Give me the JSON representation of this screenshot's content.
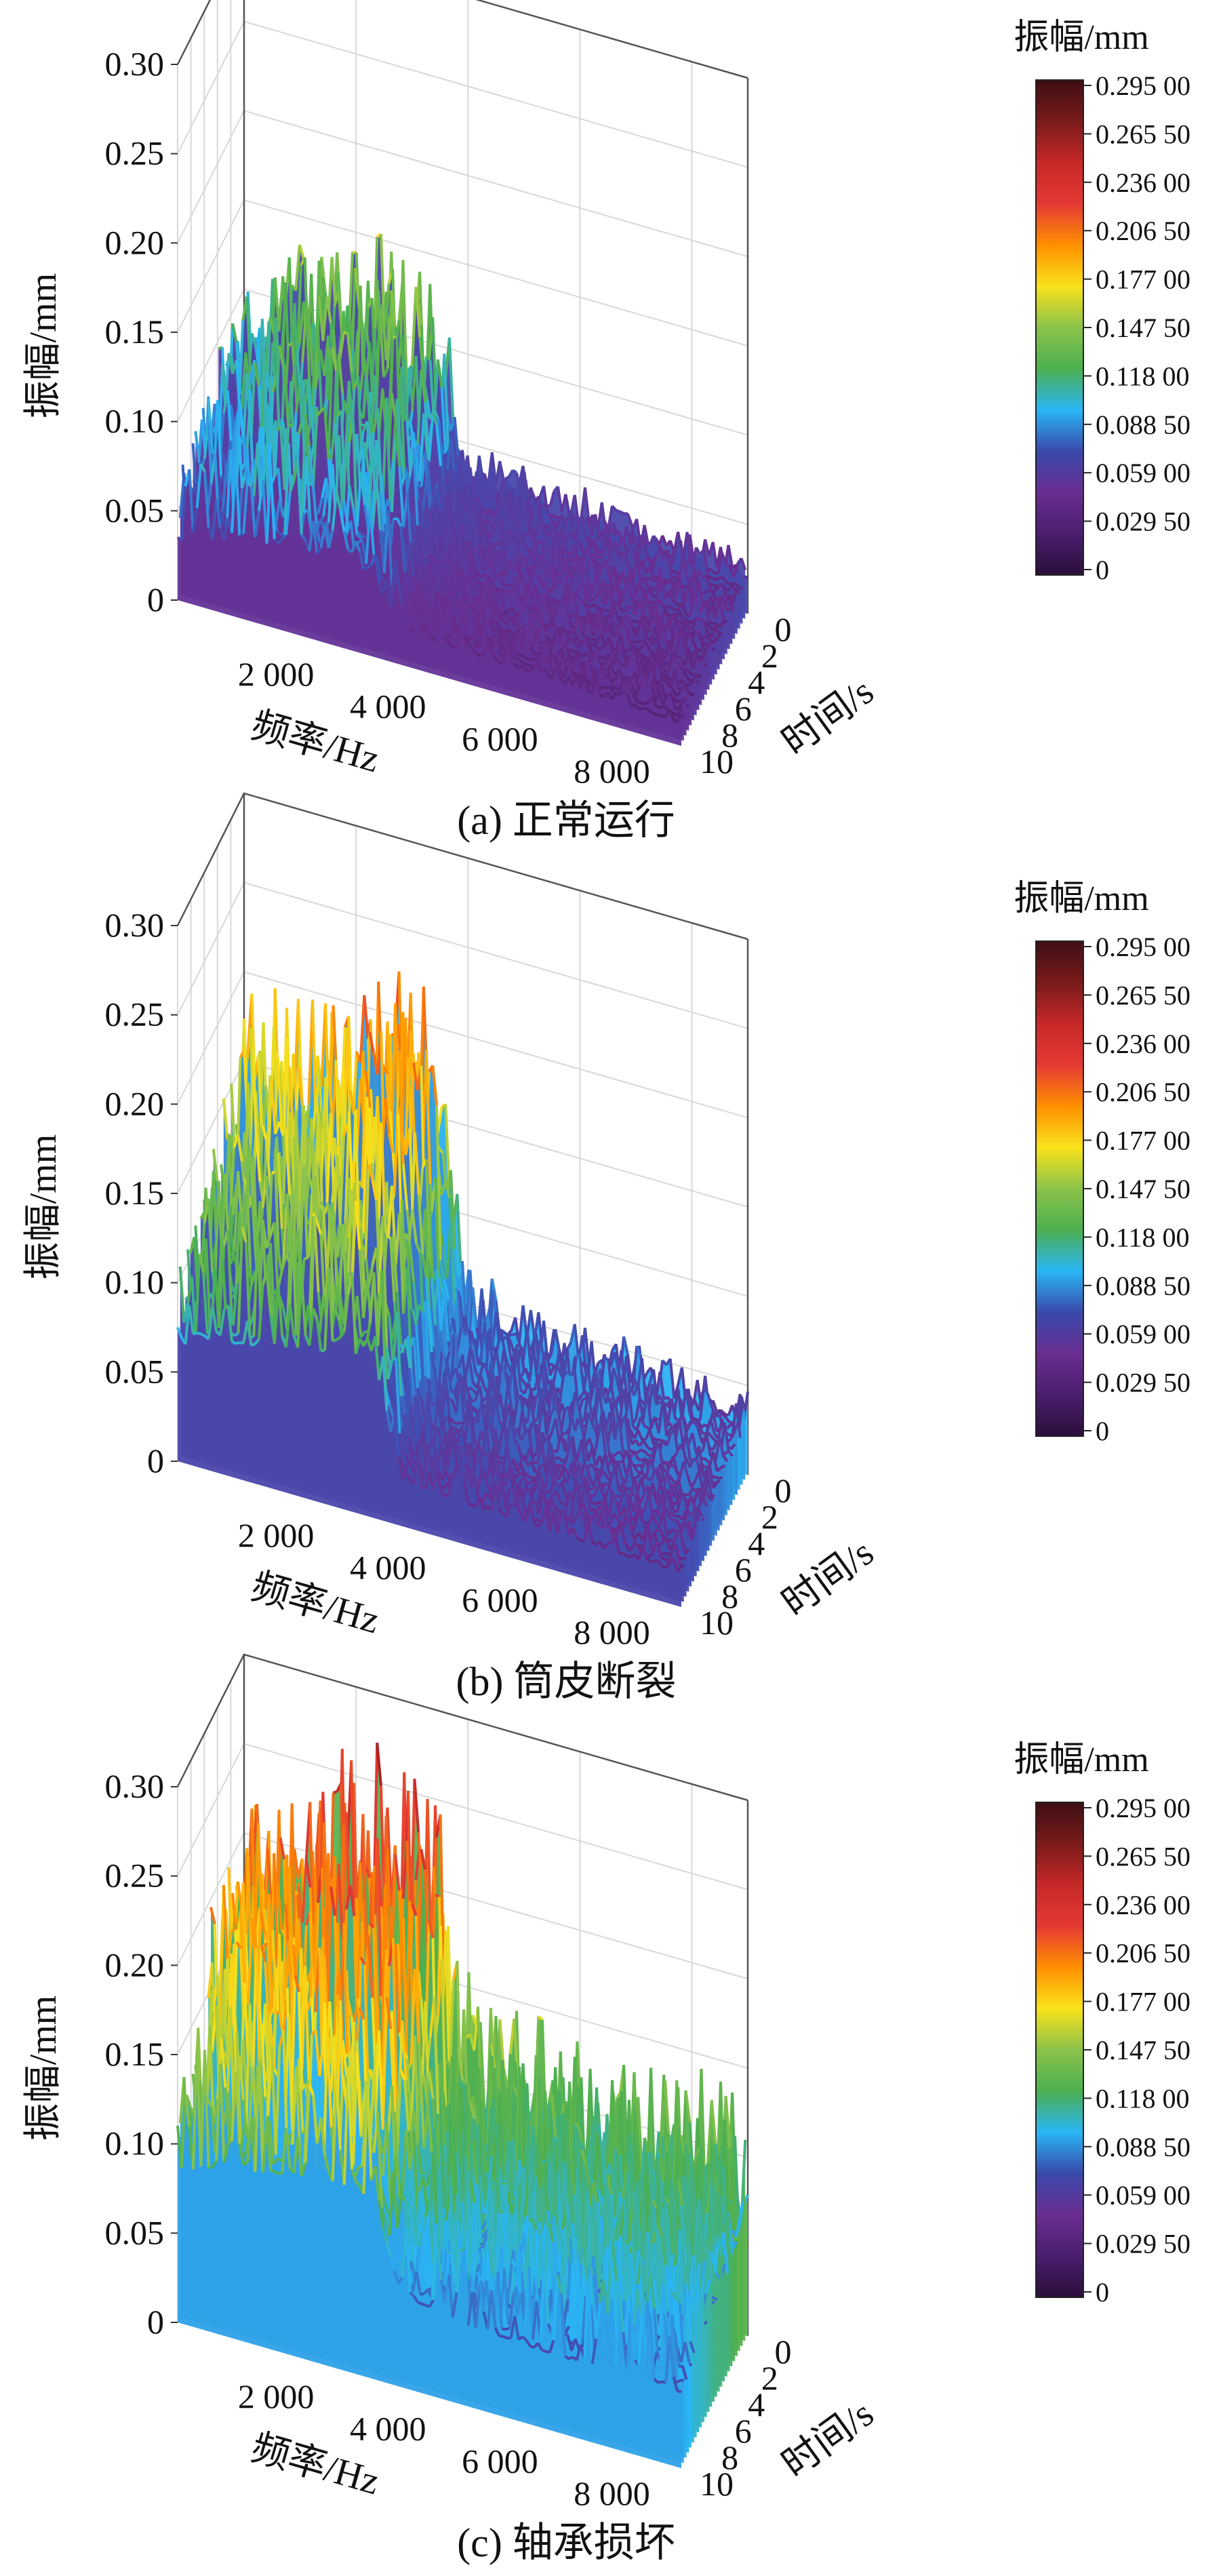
{
  "colorbar": {
    "title": "振幅/mm",
    "ticks": [
      "0.295 00",
      "0.265 50",
      "0.236 00",
      "0.206 50",
      "0.177 00",
      "0.147 50",
      "0.118 00",
      "0.088 50",
      "0.059 00",
      "0.029 50",
      "0"
    ],
    "tick_values": [
      0.295,
      0.2655,
      0.236,
      0.2065,
      0.177,
      0.1475,
      0.118,
      0.0885,
      0.059,
      0.0295,
      0
    ],
    "colors": [
      "#3d0f14",
      "#7a1a1a",
      "#c62828",
      "#e53935",
      "#ff8f00",
      "#f9e21b",
      "#8bc34a",
      "#4caf50",
      "#29b6f6",
      "#3949ab",
      "#6a2d91",
      "#4a1e6e",
      "#2a0f3a"
    ]
  },
  "chart_data": [
    {
      "type": "surface",
      "caption": "(a)  正常运行",
      "xlabel": "频率/Hz",
      "ylabel": "时间/s",
      "zlabel": "振幅/mm",
      "xlim": [
        0,
        9000
      ],
      "ylim": [
        0,
        10
      ],
      "zlim": [
        0,
        0.3
      ],
      "xticks": [
        {
          "v": 2000,
          "t": "2 000"
        },
        {
          "v": 4000,
          "t": "4 000"
        },
        {
          "v": 6000,
          "t": "6 000"
        },
        {
          "v": 8000,
          "t": "8 000"
        }
      ],
      "yticks": [
        {
          "v": 0,
          "t": "0"
        },
        {
          "v": 2,
          "t": "2"
        },
        {
          "v": 4,
          "t": "4"
        },
        {
          "v": 6,
          "t": "6"
        },
        {
          "v": 8,
          "t": "8"
        },
        {
          "v": 10,
          "t": "10"
        }
      ],
      "zticks": [
        {
          "v": 0,
          "t": "0"
        },
        {
          "v": 0.05,
          "t": "0.05"
        },
        {
          "v": 0.1,
          "t": "0.10"
        },
        {
          "v": 0.15,
          "t": "0.15"
        },
        {
          "v": 0.2,
          "t": "0.20"
        },
        {
          "v": 0.25,
          "t": "0.25"
        },
        {
          "v": 0.3,
          "t": "0.30"
        }
      ],
      "profile_freq": [
        0,
        500,
        1000,
        1500,
        2000,
        2500,
        3000,
        3500,
        4000,
        5000,
        6000,
        7000,
        8000,
        9000
      ],
      "profile_peak": [
        0.11,
        0.13,
        0.14,
        0.15,
        0.16,
        0.16,
        0.16,
        0.15,
        0.06,
        0.05,
        0.045,
        0.04,
        0.04,
        0.035
      ],
      "profile_base": [
        0.05,
        0.06,
        0.065,
        0.07,
        0.075,
        0.075,
        0.075,
        0.07,
        0.03,
        0.028,
        0.026,
        0.024,
        0.022,
        0.02
      ]
    },
    {
      "type": "surface",
      "caption": "(b)  筒皮断裂",
      "xlabel": "频率/Hz",
      "ylabel": "时间/s",
      "zlabel": "振幅/mm",
      "xlim": [
        0,
        9000
      ],
      "ylim": [
        0,
        10
      ],
      "zlim": [
        0,
        0.3
      ],
      "xticks": [
        {
          "v": 2000,
          "t": "2 000"
        },
        {
          "v": 4000,
          "t": "4 000"
        },
        {
          "v": 6000,
          "t": "6 000"
        },
        {
          "v": 8000,
          "t": "8 000"
        }
      ],
      "yticks": [
        {
          "v": 0,
          "t": "0"
        },
        {
          "v": 2,
          "t": "2"
        },
        {
          "v": 4,
          "t": "4"
        },
        {
          "v": 6,
          "t": "6"
        },
        {
          "v": 8,
          "t": "8"
        },
        {
          "v": 10,
          "t": "10"
        }
      ],
      "zticks": [
        {
          "v": 0,
          "t": "0"
        },
        {
          "v": 0.05,
          "t": "0.05"
        },
        {
          "v": 0.1,
          "t": "0.10"
        },
        {
          "v": 0.15,
          "t": "0.15"
        },
        {
          "v": 0.2,
          "t": "0.20"
        },
        {
          "v": 0.25,
          "t": "0.25"
        },
        {
          "v": 0.3,
          "t": "0.30"
        }
      ],
      "profile_freq": [
        0,
        500,
        1000,
        1500,
        2000,
        2500,
        3000,
        3500,
        4000,
        4500,
        5000,
        6000,
        7000,
        8000,
        9000
      ],
      "profile_peak": [
        0.19,
        0.2,
        0.21,
        0.21,
        0.22,
        0.23,
        0.24,
        0.25,
        0.08,
        0.07,
        0.07,
        0.06,
        0.06,
        0.05,
        0.05
      ],
      "profile_base": [
        0.1,
        0.11,
        0.115,
        0.12,
        0.125,
        0.13,
        0.135,
        0.14,
        0.04,
        0.038,
        0.036,
        0.034,
        0.032,
        0.03,
        0.03
      ]
    },
    {
      "type": "surface",
      "caption": "(c)  轴承损坏",
      "xlabel": "频率/Hz",
      "ylabel": "时间/s",
      "zlabel": "振幅/mm",
      "xlim": [
        0,
        9000
      ],
      "ylim": [
        0,
        10
      ],
      "zlim": [
        0,
        0.3
      ],
      "xticks": [
        {
          "v": 2000,
          "t": "2 000"
        },
        {
          "v": 4000,
          "t": "4 000"
        },
        {
          "v": 6000,
          "t": "6 000"
        },
        {
          "v": 8000,
          "t": "8 000"
        }
      ],
      "yticks": [
        {
          "v": 0,
          "t": "0"
        },
        {
          "v": 2,
          "t": "2"
        },
        {
          "v": 4,
          "t": "4"
        },
        {
          "v": 6,
          "t": "6"
        },
        {
          "v": 8,
          "t": "8"
        },
        {
          "v": 10,
          "t": "10"
        }
      ],
      "zticks": [
        {
          "v": 0,
          "t": "0"
        },
        {
          "v": 0.05,
          "t": "0.05"
        },
        {
          "v": 0.1,
          "t": "0.10"
        },
        {
          "v": 0.15,
          "t": "0.15"
        },
        {
          "v": 0.2,
          "t": "0.20"
        },
        {
          "v": 0.25,
          "t": "0.25"
        },
        {
          "v": 0.3,
          "t": "0.30"
        }
      ],
      "profile_freq": [
        0,
        500,
        1000,
        1500,
        2000,
        2500,
        3000,
        3500,
        4000,
        4500,
        5000,
        6000,
        7000,
        8000,
        9000
      ],
      "profile_peak": [
        0.24,
        0.25,
        0.26,
        0.27,
        0.28,
        0.29,
        0.29,
        0.28,
        0.17,
        0.16,
        0.15,
        0.14,
        0.14,
        0.15,
        0.13
      ],
      "profile_base": [
        0.13,
        0.14,
        0.145,
        0.15,
        0.155,
        0.16,
        0.16,
        0.155,
        0.08,
        0.075,
        0.07,
        0.068,
        0.066,
        0.07,
        0.065
      ]
    }
  ]
}
